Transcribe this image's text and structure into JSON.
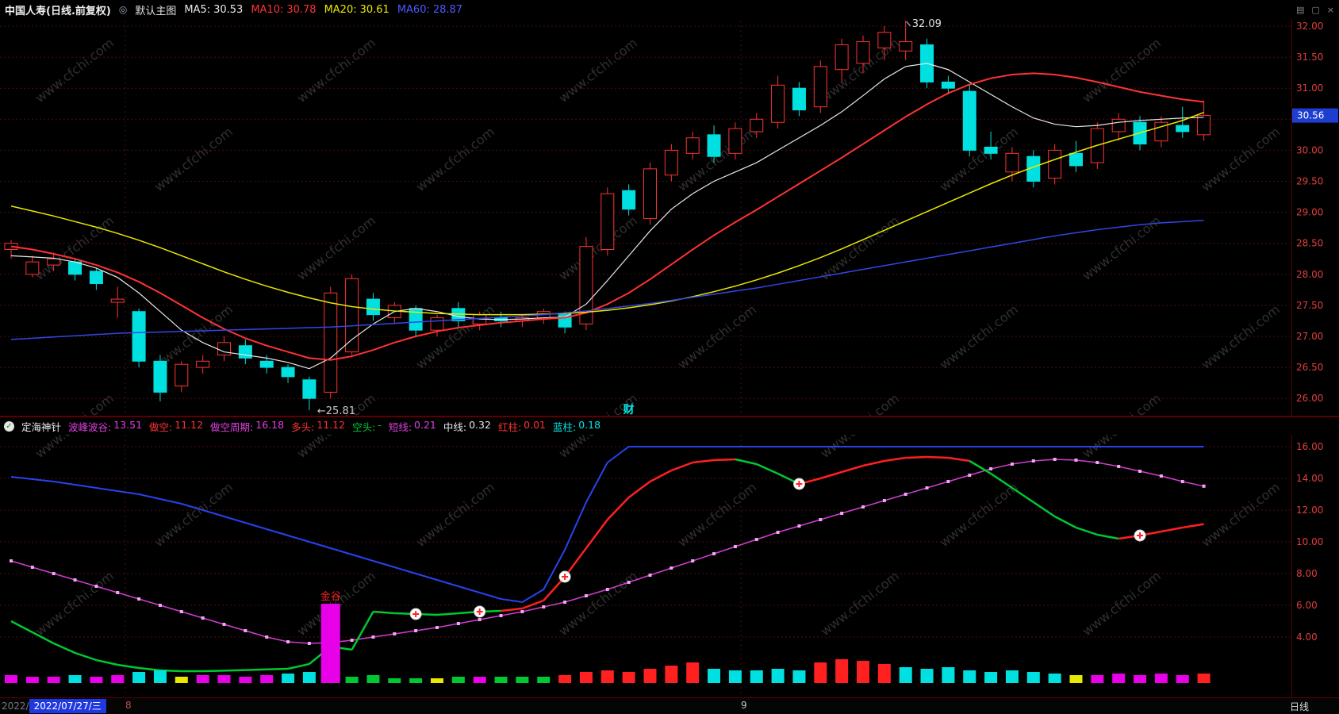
{
  "colors": {
    "background": "#000000",
    "grid": "#4a1010",
    "axis_text": "#e03e3e",
    "separator": "#5c0000",
    "up_candle": "#ff3232",
    "down_candle": "#00e0e0",
    "ma5": "#e8e8e8",
    "ma10": "#ff3232",
    "ma20": "#e8e800",
    "ma60": "#3246e6",
    "sub_blue": "#2743ee",
    "sub_purple": "#cf3fcf",
    "sub_purple_marker": "#f0a6f0",
    "sub_red": "#ff2020",
    "sub_green": "#00c832",
    "bar_magenta": "#e800e8",
    "bar_cyan": "#00e0e0",
    "bar_red": "#ff2020",
    "bar_green": "#00c832",
    "bar_yellow": "#e8e800",
    "price_box_bg": "#1e3ed2",
    "watermark": "#303030",
    "event_text": "#00e8e8"
  },
  "watermark": "www.cfchi.com",
  "top_bar": {
    "title": "中国人寿(日线.前复权)",
    "chart_style": "默认主图",
    "icons": {
      "style_glyph": "◎"
    },
    "ma_items": [
      {
        "label": "MA5:",
        "value": "30.53",
        "color": "#e8e8e8"
      },
      {
        "label": "MA10:",
        "value": "30.78",
        "color": "#ff3232"
      },
      {
        "label": "MA20:",
        "value": "30.61",
        "color": "#e8e800"
      },
      {
        "label": "MA60:",
        "value": "28.87",
        "color": "#4a5aff"
      }
    ],
    "window_icons": [
      {
        "glyph": "▤"
      },
      {
        "glyph": "▢"
      },
      {
        "glyph": "×"
      }
    ]
  },
  "sub_header": {
    "icon_glyph": "✓",
    "name": "定海神针",
    "params": [
      {
        "label": "波峰波谷:",
        "value": "13.51",
        "color": "#e040e0"
      },
      {
        "label": "做空:",
        "value": "11.12",
        "color": "#ff3232"
      },
      {
        "label": "做空周期:",
        "value": "16.18",
        "color": "#e040e0"
      },
      {
        "label": "多头:",
        "value": "11.12",
        "color": "#ff3232"
      },
      {
        "label": "空头:",
        "value": "-",
        "color": "#00c832"
      },
      {
        "label": "短线:",
        "value": "0.21",
        "color": "#e040e0"
      },
      {
        "label": "中线:",
        "value": "0.32",
        "color": "#e8e8e8"
      },
      {
        "label": "红柱:",
        "value": "0.01",
        "color": "#ff3232"
      },
      {
        "label": "蓝柱:",
        "value": "0.18",
        "color": "#00e8e8"
      }
    ]
  },
  "status_bar": {
    "prefix": "2022/",
    "date": "2022/07/27/三",
    "month_labels": [
      {
        "text": "8",
        "x": 158,
        "color": "#c05050"
      },
      {
        "text": "9",
        "x": 934,
        "color": "#c8c8c8"
      }
    ],
    "period": "日线"
  },
  "chart_data": [
    {
      "type": "candlestick",
      "panel": "main",
      "title": "中国人寿(日线.前复权)",
      "y_ticks": [
        "32.00",
        "31.50",
        "31.00",
        "30.50",
        "30.00",
        "29.50",
        "29.00",
        "28.50",
        "28.00",
        "27.50",
        "27.00",
        "26.50",
        "26.00"
      ],
      "y_range": [
        25.7,
        32.2
      ],
      "current_price": "30.56",
      "candles": [
        [
          28.4,
          28.55,
          28.25,
          28.5
        ],
        [
          28.0,
          28.3,
          27.95,
          28.2
        ],
        [
          28.15,
          28.35,
          28.05,
          28.25
        ],
        [
          28.2,
          28.25,
          27.9,
          28.0
        ],
        [
          28.05,
          28.1,
          27.75,
          27.85
        ],
        [
          27.55,
          27.8,
          27.3,
          27.6
        ],
        [
          27.4,
          27.45,
          26.5,
          26.6
        ],
        [
          26.6,
          26.7,
          25.95,
          26.1
        ],
        [
          26.2,
          26.6,
          26.1,
          26.55
        ],
        [
          26.5,
          26.7,
          26.4,
          26.6
        ],
        [
          26.7,
          27.0,
          26.6,
          26.9
        ],
        [
          26.85,
          26.95,
          26.55,
          26.65
        ],
        [
          26.6,
          26.7,
          26.4,
          26.5
        ],
        [
          26.5,
          26.55,
          26.25,
          26.35
        ],
        [
          26.3,
          26.35,
          25.81,
          26.0
        ],
        [
          26.1,
          27.8,
          26.0,
          27.7
        ],
        [
          26.75,
          28.0,
          26.7,
          27.93
        ],
        [
          27.6,
          27.7,
          27.25,
          27.35
        ],
        [
          27.3,
          27.55,
          27.2,
          27.5
        ],
        [
          27.45,
          27.5,
          27.0,
          27.1
        ],
        [
          27.1,
          27.35,
          27.0,
          27.3
        ],
        [
          27.45,
          27.55,
          27.15,
          27.25
        ],
        [
          27.2,
          27.4,
          27.1,
          27.35
        ],
        [
          27.3,
          27.4,
          27.15,
          27.25
        ],
        [
          27.25,
          27.35,
          27.15,
          27.3
        ],
        [
          27.3,
          27.45,
          27.2,
          27.4
        ],
        [
          27.35,
          27.4,
          27.05,
          27.15
        ],
        [
          27.2,
          28.6,
          27.1,
          28.45
        ],
        [
          28.4,
          29.4,
          28.3,
          29.3
        ],
        [
          29.35,
          29.45,
          28.95,
          29.05
        ],
        [
          28.9,
          29.8,
          28.8,
          29.7
        ],
        [
          29.6,
          30.1,
          29.5,
          30.0
        ],
        [
          29.95,
          30.3,
          29.85,
          30.2
        ],
        [
          30.25,
          30.4,
          29.8,
          29.9
        ],
        [
          29.95,
          30.45,
          29.85,
          30.35
        ],
        [
          30.3,
          30.6,
          30.2,
          30.5
        ],
        [
          30.45,
          31.2,
          30.35,
          31.05
        ],
        [
          31.0,
          31.1,
          30.55,
          30.65
        ],
        [
          30.7,
          31.45,
          30.6,
          31.35
        ],
        [
          31.3,
          31.8,
          31.1,
          31.7
        ],
        [
          31.4,
          31.85,
          31.25,
          31.75
        ],
        [
          31.65,
          32.0,
          31.45,
          31.9
        ],
        [
          31.6,
          32.09,
          31.45,
          31.75
        ],
        [
          31.7,
          31.8,
          31.0,
          31.1
        ],
        [
          31.1,
          31.2,
          30.9,
          31.0
        ],
        [
          30.95,
          31.05,
          29.9,
          30.0
        ],
        [
          30.05,
          30.3,
          29.85,
          29.95
        ],
        [
          29.65,
          30.05,
          29.5,
          29.95
        ],
        [
          29.9,
          30.0,
          29.4,
          29.5
        ],
        [
          29.55,
          30.1,
          29.45,
          30.0
        ],
        [
          29.95,
          30.15,
          29.65,
          29.75
        ],
        [
          29.8,
          30.45,
          29.7,
          30.35
        ],
        [
          30.3,
          30.6,
          30.15,
          30.5
        ],
        [
          30.45,
          30.55,
          30.0,
          30.1
        ],
        [
          30.15,
          30.55,
          30.05,
          30.45
        ],
        [
          30.4,
          30.7,
          30.2,
          30.3
        ],
        [
          30.25,
          30.8,
          30.15,
          30.56
        ]
      ],
      "ma5": [
        28.3,
        28.28,
        28.26,
        28.2,
        28.1,
        27.95,
        27.7,
        27.4,
        27.1,
        26.9,
        26.75,
        26.7,
        26.65,
        26.58,
        26.48,
        26.65,
        26.95,
        27.2,
        27.4,
        27.45,
        27.4,
        27.32,
        27.28,
        27.27,
        27.28,
        27.3,
        27.31,
        27.52,
        27.9,
        28.3,
        28.7,
        29.05,
        29.3,
        29.5,
        29.65,
        29.8,
        30.0,
        30.2,
        30.4,
        30.62,
        30.88,
        31.15,
        31.35,
        31.4,
        31.3,
        31.1,
        30.9,
        30.7,
        30.52,
        30.42,
        30.38,
        30.4,
        30.45,
        30.48,
        30.5,
        30.52,
        30.53
      ],
      "ma10": [
        28.45,
        28.4,
        28.33,
        28.25,
        28.15,
        28.03,
        27.88,
        27.7,
        27.5,
        27.3,
        27.12,
        26.97,
        26.85,
        26.75,
        26.65,
        26.62,
        26.68,
        26.78,
        26.9,
        27.0,
        27.08,
        27.14,
        27.18,
        27.22,
        27.25,
        27.28,
        27.3,
        27.38,
        27.52,
        27.7,
        27.92,
        28.16,
        28.4,
        28.63,
        28.84,
        29.04,
        29.25,
        29.46,
        29.67,
        29.88,
        30.1,
        30.32,
        30.54,
        30.74,
        30.92,
        31.06,
        31.16,
        31.22,
        31.24,
        31.22,
        31.17,
        31.1,
        31.02,
        30.94,
        30.88,
        30.82,
        30.78
      ],
      "ma20": [
        29.1,
        29.02,
        28.94,
        28.85,
        28.76,
        28.66,
        28.55,
        28.43,
        28.3,
        28.17,
        28.04,
        27.92,
        27.81,
        27.71,
        27.62,
        27.54,
        27.48,
        27.44,
        27.41,
        27.39,
        27.37,
        27.36,
        27.35,
        27.35,
        27.35,
        27.36,
        27.37,
        27.39,
        27.42,
        27.46,
        27.51,
        27.57,
        27.64,
        27.72,
        27.81,
        27.91,
        28.02,
        28.14,
        28.27,
        28.41,
        28.56,
        28.71,
        28.86,
        29.01,
        29.16,
        29.31,
        29.46,
        29.6,
        29.73,
        29.85,
        29.97,
        30.08,
        30.18,
        30.28,
        30.38,
        30.48,
        30.61
      ],
      "ma60": [
        26.95,
        26.97,
        26.99,
        27.01,
        27.03,
        27.05,
        27.06,
        27.07,
        27.08,
        27.09,
        27.1,
        27.11,
        27.12,
        27.13,
        27.14,
        27.15,
        27.17,
        27.19,
        27.21,
        27.23,
        27.25,
        27.27,
        27.29,
        27.31,
        27.33,
        27.35,
        27.38,
        27.41,
        27.45,
        27.49,
        27.53,
        27.58,
        27.63,
        27.68,
        27.73,
        27.78,
        27.84,
        27.9,
        27.96,
        28.02,
        28.08,
        28.14,
        28.2,
        28.26,
        28.32,
        28.38,
        28.44,
        28.5,
        28.56,
        28.62,
        28.67,
        28.72,
        28.76,
        28.8,
        28.83,
        28.85,
        28.87
      ],
      "annotations": [
        {
          "type": "high",
          "index": 42,
          "price": 32.09,
          "text": "32.09"
        },
        {
          "type": "low",
          "index": 14,
          "price": 25.81,
          "text": "←25.81"
        },
        {
          "type": "event",
          "index": 29,
          "text": "财"
        }
      ]
    },
    {
      "type": "line",
      "panel": "sub",
      "indicator": "定海神针",
      "y_ticks": [
        "16.00",
        "14.00",
        "12.00",
        "10.00",
        "8.00",
        "6.00",
        "4.00"
      ],
      "wave": [
        8.8,
        8.4,
        8.0,
        7.6,
        7.2,
        6.8,
        6.4,
        6.0,
        5.6,
        5.2,
        4.8,
        4.4,
        4.0,
        3.7,
        3.6,
        3.65,
        3.8,
        4.0,
        4.2,
        4.4,
        4.6,
        4.85,
        5.1,
        5.35,
        5.6,
        5.9,
        6.2,
        6.6,
        7.0,
        7.45,
        7.9,
        8.35,
        8.8,
        9.25,
        9.7,
        10.15,
        10.6,
        11.0,
        11.4,
        11.8,
        12.2,
        12.6,
        13.0,
        13.4,
        13.8,
        14.2,
        14.6,
        14.9,
        15.1,
        15.2,
        15.15,
        15.0,
        14.75,
        14.45,
        14.15,
        13.8,
        13.51
      ],
      "blue": [
        14.1,
        13.95,
        13.8,
        13.6,
        13.4,
        13.2,
        13.0,
        12.7,
        12.4,
        12.0,
        11.6,
        11.2,
        10.8,
        10.4,
        10.0,
        9.6,
        9.2,
        8.8,
        8.4,
        8.0,
        7.6,
        7.2,
        6.8,
        6.4,
        6.2,
        7.0,
        9.5,
        12.5,
        15.0,
        16.0,
        16.0,
        16.0,
        16.0,
        16.0,
        16.0,
        16.0,
        16.0,
        16.0,
        16.0,
        16.0,
        16.0,
        16.0,
        16.0,
        16.0,
        16.0,
        16.0,
        16.0,
        16.0,
        16.0,
        16.0,
        16.0,
        16.0,
        16.0,
        16.0,
        16.0,
        16.0,
        16.0
      ],
      "bull_bear": [
        5.0,
        4.3,
        3.6,
        3.0,
        2.55,
        2.25,
        2.05,
        1.9,
        1.85,
        1.85,
        1.88,
        1.92,
        1.96,
        2.0,
        2.3,
        3.4,
        3.2,
        5.6,
        5.5,
        5.45,
        5.4,
        5.5,
        5.6,
        5.65,
        5.8,
        6.3,
        7.8,
        9.6,
        11.4,
        12.8,
        13.8,
        14.5,
        15.0,
        15.15,
        15.2,
        14.9,
        14.3,
        13.65,
        14.0,
        14.4,
        14.8,
        15.1,
        15.3,
        15.35,
        15.3,
        15.1,
        14.3,
        13.4,
        12.5,
        11.6,
        10.9,
        10.45,
        10.2,
        10.4,
        10.65,
        10.9,
        11.12
      ],
      "bull_bear_colors": "ggggggggggggggggggggggggrrrrrrrrrrrgggrrrrrrrrgggggggrrrr",
      "cross_markers": [
        19,
        22,
        26,
        37,
        53
      ],
      "bars": [
        [
          "m",
          10
        ],
        [
          "m",
          8
        ],
        [
          "m",
          8
        ],
        [
          "c",
          10
        ],
        [
          "m",
          8
        ],
        [
          "m",
          10
        ],
        [
          "c",
          14
        ],
        [
          "c",
          16
        ],
        [
          "y",
          8
        ],
        [
          "m",
          10
        ],
        [
          "m",
          10
        ],
        [
          "m",
          8
        ],
        [
          "m",
          10
        ],
        [
          "c",
          12
        ],
        [
          "c",
          14
        ],
        [
          "m",
          100
        ],
        [
          "g",
          8
        ],
        [
          "g",
          10
        ],
        [
          "g",
          6
        ],
        [
          "g",
          6
        ],
        [
          "y",
          6
        ],
        [
          "g",
          8
        ],
        [
          "m",
          8
        ],
        [
          "g",
          8
        ],
        [
          "g",
          8
        ],
        [
          "g",
          8
        ],
        [
          "r",
          10
        ],
        [
          "r",
          14
        ],
        [
          "r",
          16
        ],
        [
          "r",
          14
        ],
        [
          "r",
          18
        ],
        [
          "r",
          22
        ],
        [
          "r",
          26
        ],
        [
          "c",
          18
        ],
        [
          "c",
          16
        ],
        [
          "c",
          16
        ],
        [
          "c",
          18
        ],
        [
          "c",
          16
        ],
        [
          "r",
          26
        ],
        [
          "r",
          30
        ],
        [
          "r",
          28
        ],
        [
          "r",
          24
        ],
        [
          "c",
          20
        ],
        [
          "c",
          18
        ],
        [
          "c",
          20
        ],
        [
          "c",
          16
        ],
        [
          "c",
          14
        ],
        [
          "c",
          16
        ],
        [
          "c",
          14
        ],
        [
          "c",
          12
        ],
        [
          "y",
          10
        ],
        [
          "m",
          10
        ],
        [
          "m",
          12
        ],
        [
          "m",
          10
        ],
        [
          "m",
          12
        ],
        [
          "m",
          10
        ],
        [
          "r",
          12
        ]
      ],
      "annotations": [
        {
          "index": 15,
          "text": "金谷"
        }
      ]
    }
  ]
}
